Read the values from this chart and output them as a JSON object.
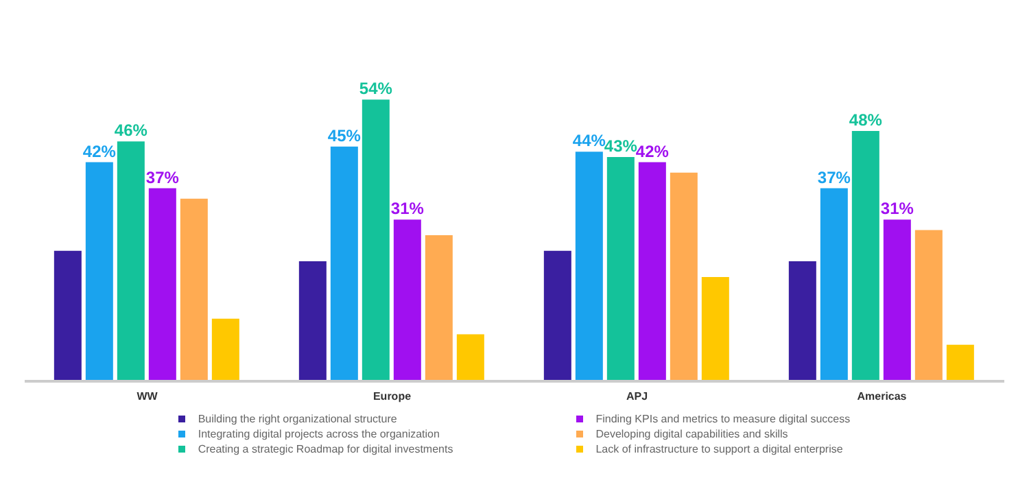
{
  "chart_data": {
    "type": "bar",
    "categories": [
      "WW",
      "Europe",
      "APJ",
      "Americas"
    ],
    "series": [
      {
        "name": "Building the right organizational structure",
        "color": "#3a1fa0",
        "values": [
          25,
          23,
          25,
          23
        ]
      },
      {
        "name": "Integrating digital projects across the organization",
        "color": "#1aa3ee",
        "values": [
          42,
          45,
          44,
          37
        ],
        "value_labels": [
          "42%",
          "45%",
          "44%",
          "37%"
        ]
      },
      {
        "name": "Creating a strategic Roadmap for digital investments",
        "color": "#14c29a",
        "values": [
          46,
          54,
          43,
          48
        ],
        "value_labels": [
          "46%",
          "54%",
          "43%",
          "48%"
        ]
      },
      {
        "name": "Finding KPIs and metrics to measure digital success",
        "color": "#a010f0",
        "values": [
          37,
          31,
          42,
          31
        ],
        "value_labels": [
          "37%",
          "31%",
          "42%",
          "31%"
        ]
      },
      {
        "name": "Developing digital capabilities and skills",
        "color": "#ffab52",
        "values": [
          35,
          28,
          40,
          29
        ]
      },
      {
        "name": "Lack of infrastructure to support a digital enterprise",
        "color": "#ffc800",
        "values": [
          12,
          9,
          20,
          7
        ]
      }
    ],
    "legend": "bottom",
    "grid": false
  }
}
